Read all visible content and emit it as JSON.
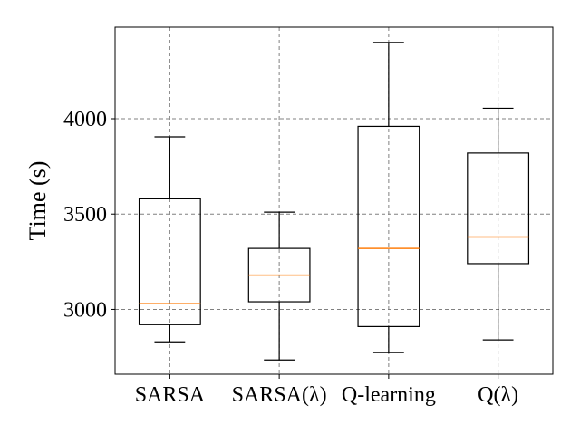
{
  "chart_data": {
    "type": "box",
    "title": "",
    "xlabel": "",
    "ylabel": "Time (s)",
    "ylim": [
      2660,
      4480
    ],
    "yticks": [
      3000,
      3500,
      4000
    ],
    "grid": true,
    "categories": [
      "SARSA",
      "SARSA(λ)",
      "Q-learning",
      "Q(λ)"
    ],
    "boxes": [
      {
        "category": "SARSA",
        "whisker_low": 2830,
        "q1": 2920,
        "median": 3030,
        "q3": 3580,
        "whisker_high": 3905
      },
      {
        "category": "SARSA(λ)",
        "whisker_low": 2735,
        "q1": 3040,
        "median": 3180,
        "q3": 3320,
        "whisker_high": 3510
      },
      {
        "category": "Q-learning",
        "whisker_low": 2775,
        "q1": 2910,
        "median": 3320,
        "q3": 3960,
        "whisker_high": 4400
      },
      {
        "category": "Q(λ)",
        "whisker_low": 2840,
        "q1": 3240,
        "median": 3380,
        "q3": 3820,
        "whisker_high": 4055
      }
    ],
    "colors": {
      "box": "#000000",
      "median": "#ff7f0e",
      "grid": "#808080"
    }
  }
}
